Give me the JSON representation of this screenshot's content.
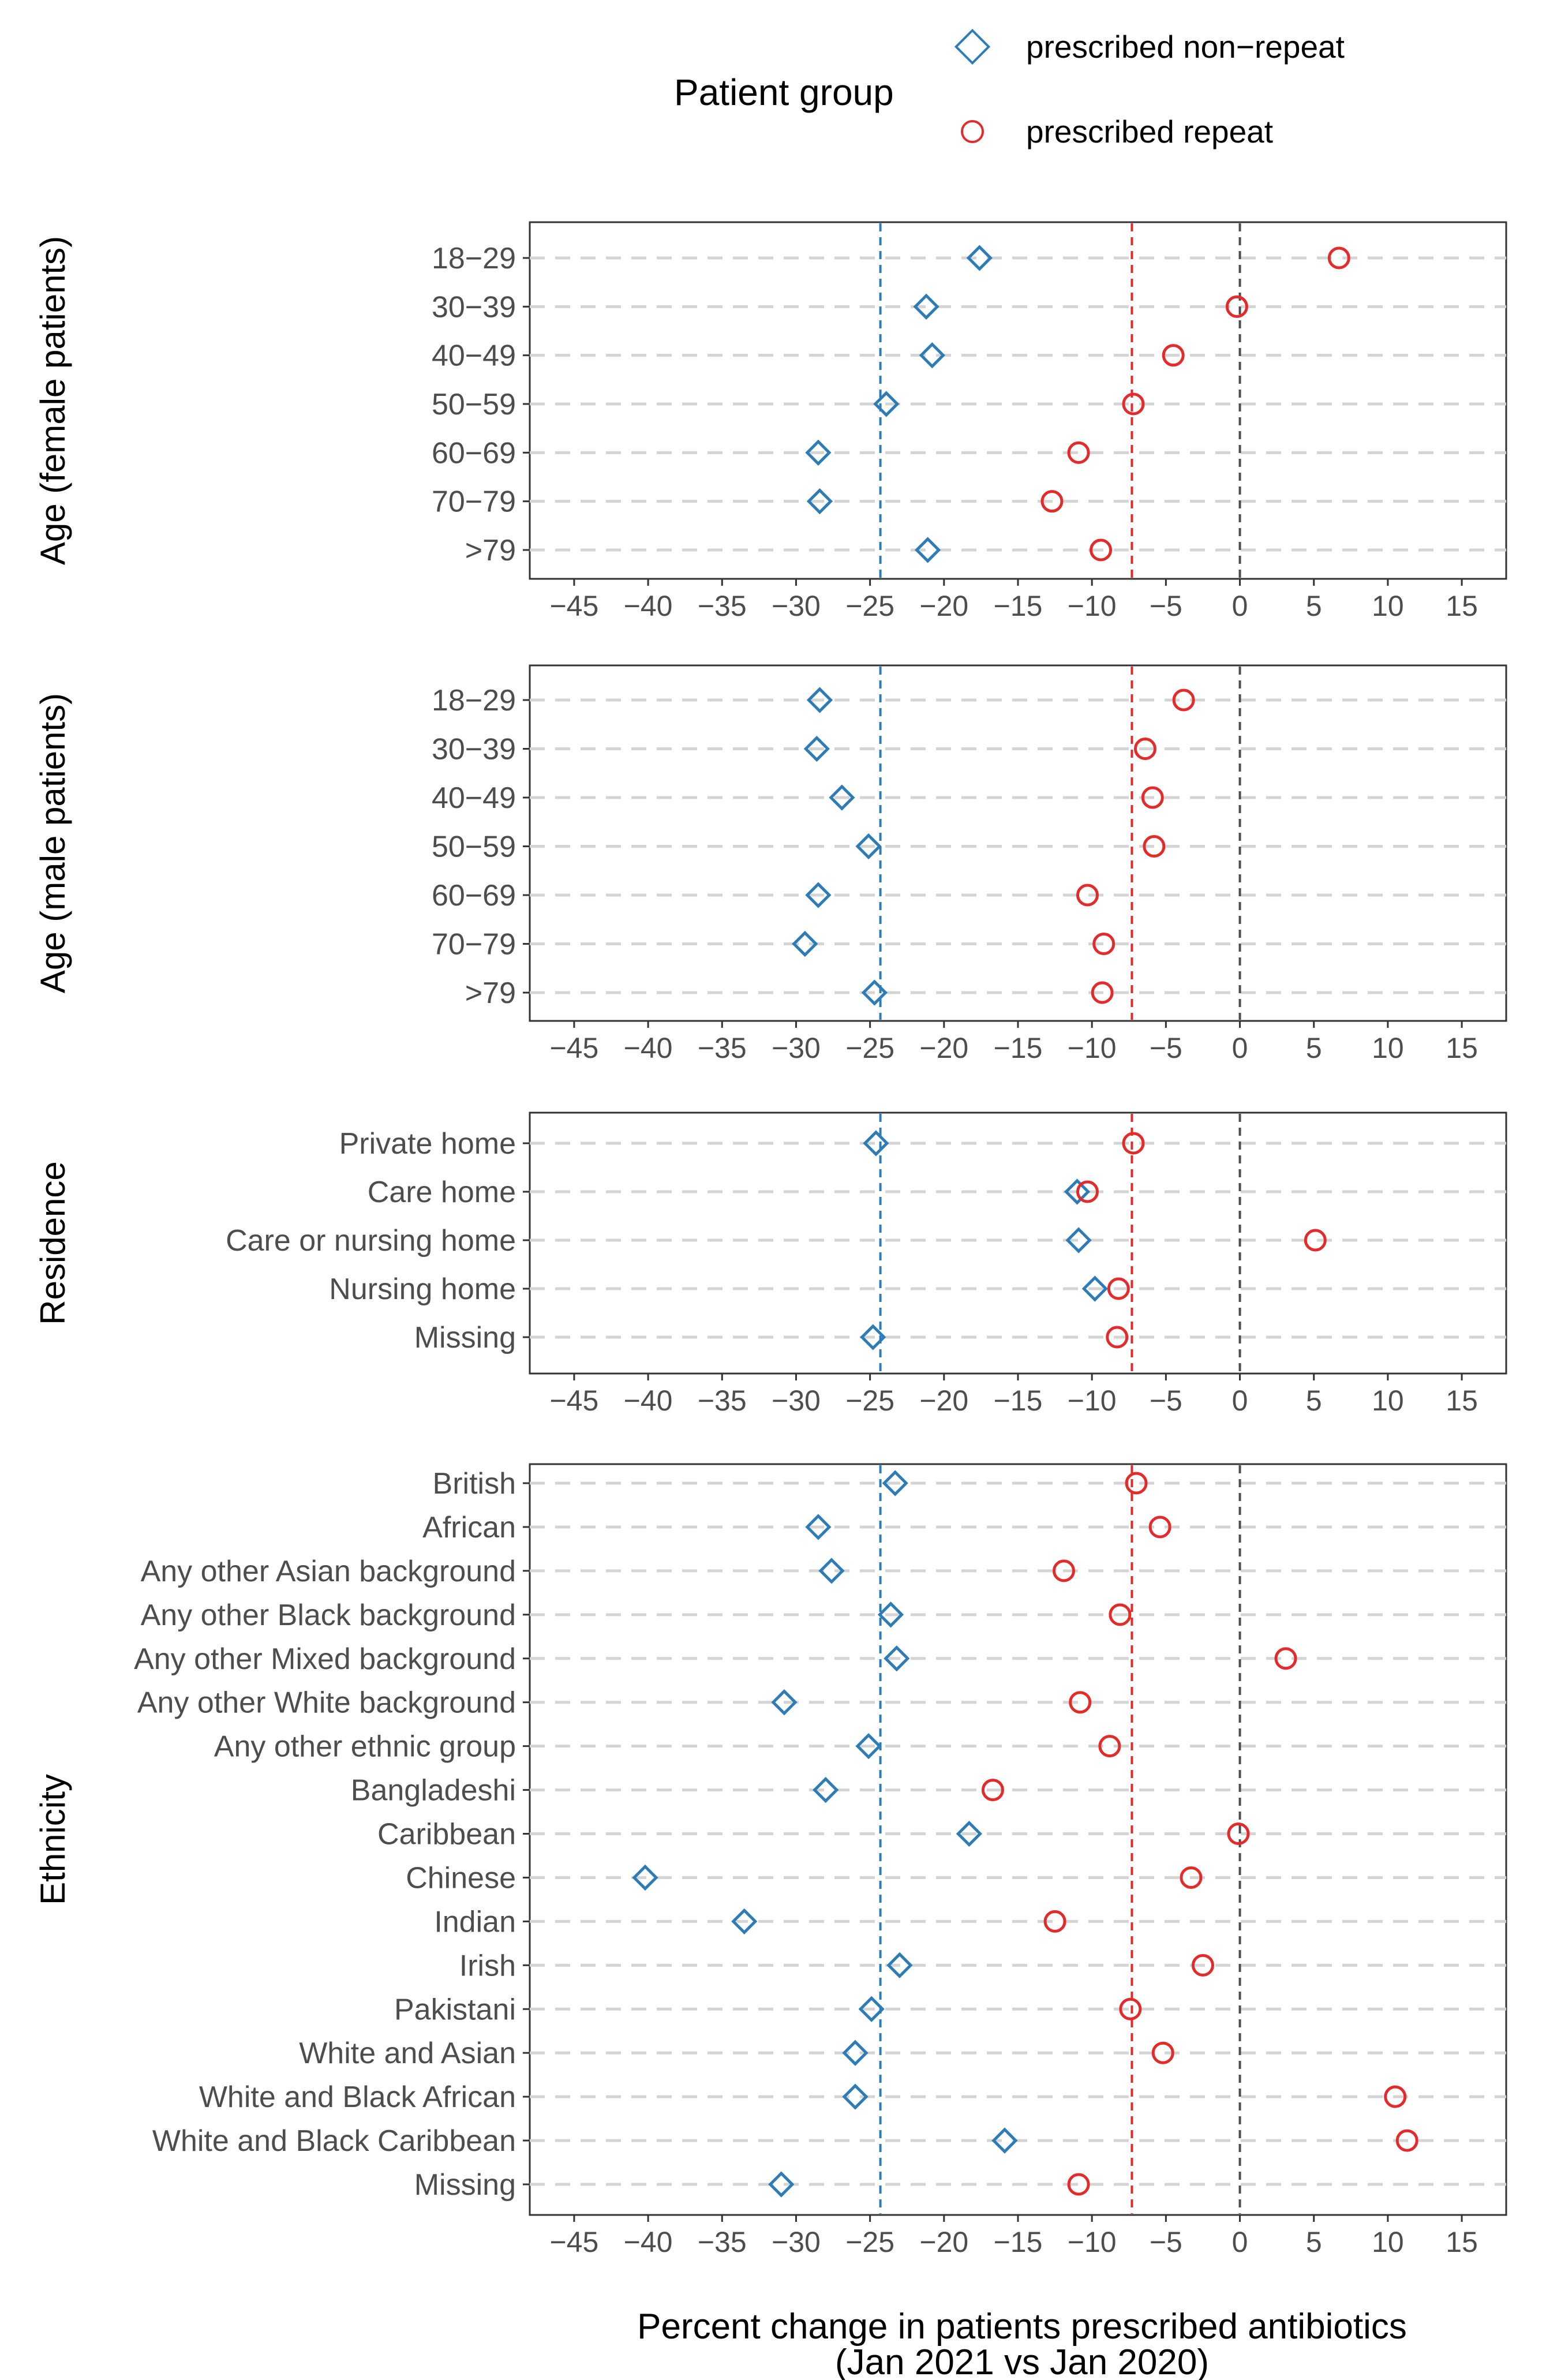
{
  "chart_data": {
    "type": "scatter",
    "title": "",
    "xlabel_line1": "Percent change in patients prescribed antibiotics",
    "xlabel_line2": "(Jan 2021 vs Jan 2020)",
    "xlim": [
      -48,
      18
    ],
    "xticks": [
      -45,
      -40,
      -35,
      -30,
      -25,
      -20,
      -15,
      -10,
      -5,
      0,
      5,
      10,
      15
    ],
    "xtick_labels": [
      "−45",
      "−40",
      "−35",
      "−30",
      "−25",
      "−20",
      "−15",
      "−10",
      "−5",
      "0",
      "5",
      "10",
      "15"
    ],
    "legend": {
      "title": "Patient group",
      "position": "top",
      "entries": [
        {
          "label": "prescribed non−repeat",
          "shape": "diamond",
          "color": "#2e7cb5"
        },
        {
          "label": "prescribed repeat",
          "shape": "circle",
          "color": "#e32b2b"
        }
      ]
    },
    "reference_lines": [
      {
        "name": "zero",
        "x": 0,
        "color": "#4d4d4d"
      },
      {
        "name": "overall non-repeat",
        "x": -24.3,
        "color": "#2e7cb5"
      },
      {
        "name": "overall repeat",
        "x": -7.3,
        "color": "#e32b2b"
      }
    ],
    "grid": "horizontal dashed",
    "facets": [
      {
        "title": "Age (female patients)",
        "categories": [
          "18−29",
          "30−39",
          "40−49",
          "50−59",
          "60−69",
          "70−79",
          ">79"
        ],
        "non_repeat": [
          -17.6,
          -21.2,
          -20.8,
          -23.9,
          -28.5,
          -28.4,
          -21.1
        ],
        "repeat": [
          6.7,
          -0.2,
          -4.5,
          -7.2,
          -10.9,
          -12.7,
          -9.4
        ]
      },
      {
        "title": "Age (male patients)",
        "categories": [
          "18−29",
          "30−39",
          "40−49",
          "50−59",
          "60−69",
          "70−79",
          ">79"
        ],
        "non_repeat": [
          -28.4,
          -28.6,
          -26.9,
          -25.1,
          -28.5,
          -29.4,
          -24.7
        ],
        "repeat": [
          -3.8,
          -6.4,
          -5.9,
          -5.8,
          -10.3,
          -9.2,
          -9.3
        ]
      },
      {
        "title": "Residence",
        "categories": [
          "Private home",
          "Care home",
          "Care or nursing home",
          "Nursing home",
          "Missing"
        ],
        "non_repeat": [
          -24.6,
          -11.0,
          -10.9,
          -9.8,
          -24.8
        ],
        "repeat": [
          -7.2,
          -10.3,
          5.1,
          -8.2,
          -8.3
        ]
      },
      {
        "title": "Ethnicity",
        "categories": [
          "British",
          "African",
          "Any other Asian background",
          "Any other Black background",
          "Any other Mixed background",
          "Any other White background",
          "Any other ethnic group",
          "Bangladeshi",
          "Caribbean",
          "Chinese",
          "Indian",
          "Irish",
          "Pakistani",
          "White and Asian",
          "White and Black African",
          "White and Black Caribbean",
          "Missing"
        ],
        "non_repeat": [
          -23.3,
          -28.5,
          -27.6,
          -23.6,
          -23.2,
          -30.8,
          -25.1,
          -28.0,
          -18.3,
          -40.2,
          -33.5,
          -23.0,
          -24.9,
          -26.0,
          -26.0,
          -15.9,
          -31.0
        ],
        "repeat": [
          -7.0,
          -5.4,
          -11.9,
          -8.1,
          3.1,
          -10.8,
          -8.8,
          -16.7,
          -0.1,
          -3.3,
          -12.5,
          -2.5,
          -7.4,
          -5.2,
          10.5,
          11.3,
          -10.9
        ]
      }
    ]
  }
}
